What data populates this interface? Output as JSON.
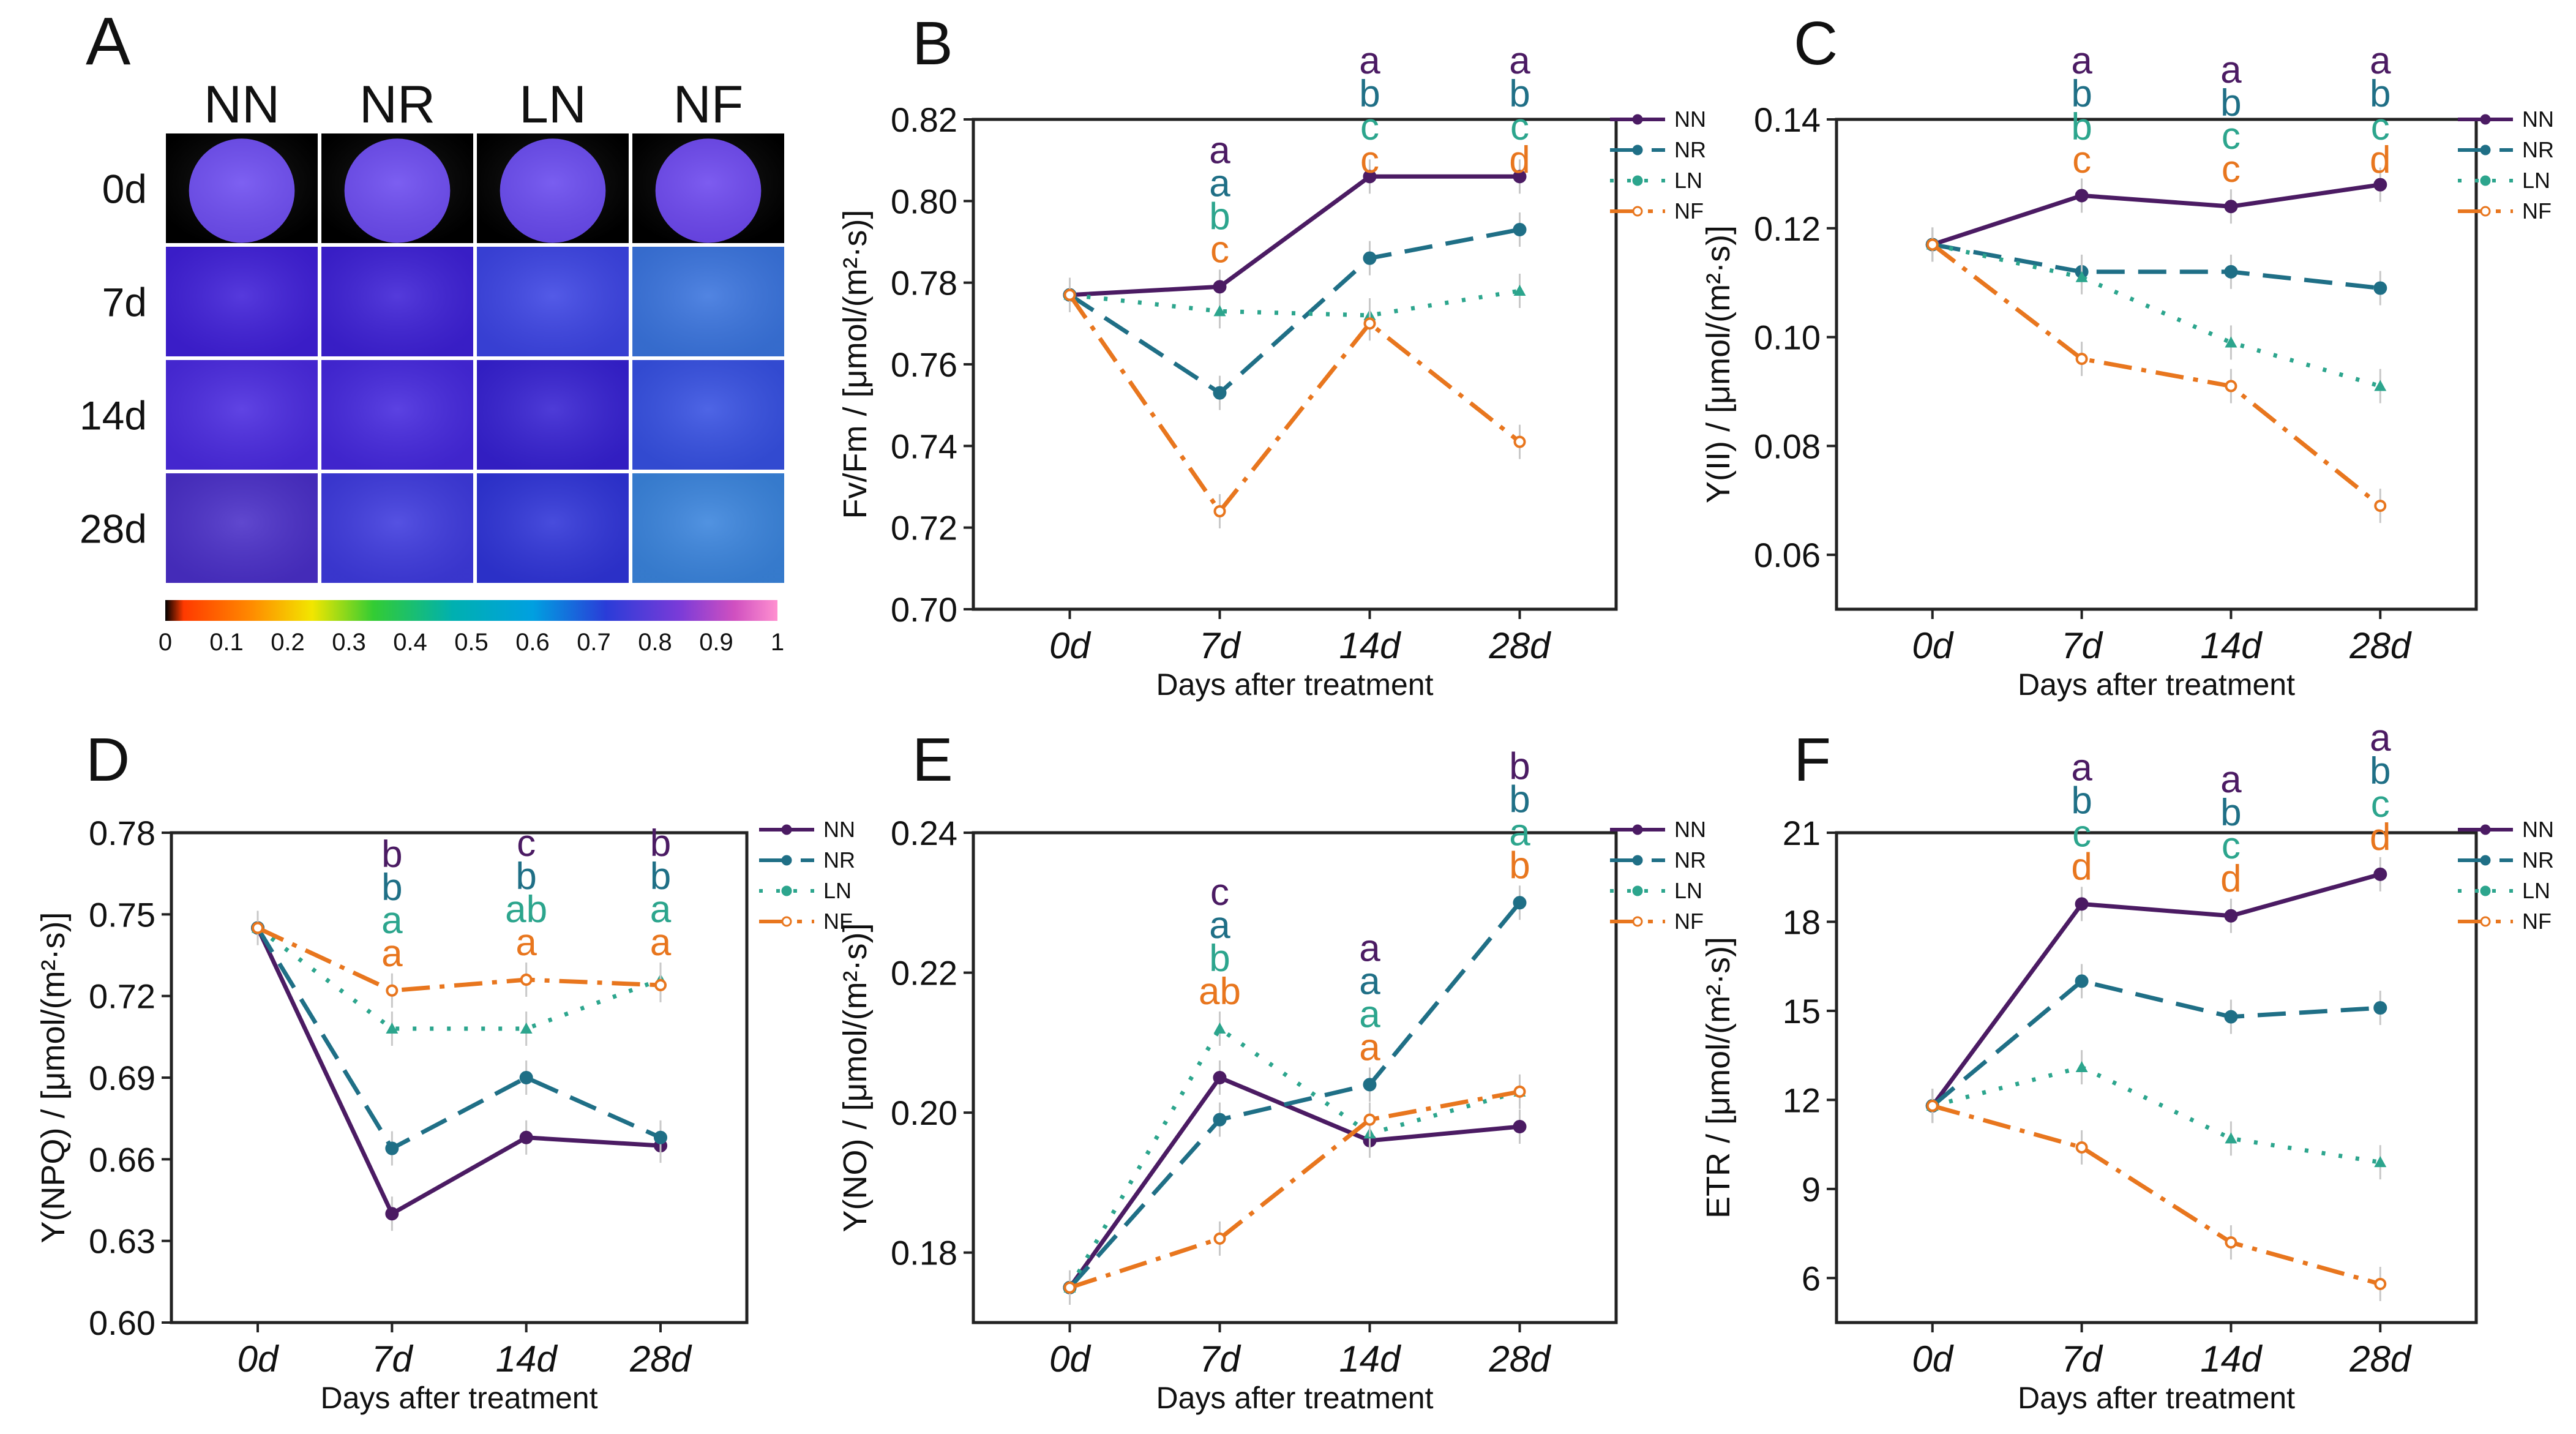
{
  "panel_a": {
    "letter": "A",
    "columns": [
      "NN",
      "NR",
      "LN",
      "NF"
    ],
    "rows": [
      "0d",
      "7d",
      "14d",
      "28d"
    ],
    "colorbar_ticks": [
      "0",
      "0.1",
      "0.2",
      "0.3",
      "0.4",
      "0.5",
      "0.6",
      "0.7",
      "0.8",
      "0.9",
      "1"
    ],
    "colors": {
      "0d": [
        "#6c4bf0",
        "#6a49ef",
        "#6748ee",
        "#6b46ee"
      ],
      "7d": [
        "#3f1fd8",
        "#3d20d6",
        "#3c44e4",
        "#3a74de"
      ],
      "14d": [
        "#4a2ae0",
        "#4528de",
        "#3621d2",
        "#3650e2"
      ],
      "28d": [
        "#4a2fc8",
        "#3e3ade",
        "#2f34d8",
        "#3a84dd"
      ]
    }
  },
  "series_colors": {
    "NN": "#4b1b63",
    "NR": "#1f6f86",
    "LN": "#2ca58d",
    "NF": "#e8761e"
  },
  "chart_data": [
    {
      "id": "B",
      "letter": "B",
      "type": "line",
      "categories": [
        "0d",
        "7d",
        "14d",
        "28d"
      ],
      "xlabel": "Days after treatment",
      "ylabel": "Fv/Fm / [μmol/(m²·s)]",
      "ylim": [
        0.7,
        0.82
      ],
      "yticks": [
        "0.70",
        "0.72",
        "0.74",
        "0.76",
        "0.78",
        "0.80",
        "0.82"
      ],
      "series": [
        {
          "name": "NN",
          "values": [
            0.777,
            0.779,
            0.806,
            0.806
          ]
        },
        {
          "name": "NR",
          "values": [
            0.777,
            0.753,
            0.786,
            0.793
          ]
        },
        {
          "name": "LN",
          "values": [
            0.777,
            0.773,
            0.772,
            0.778
          ]
        },
        {
          "name": "NF",
          "values": [
            0.777,
            0.724,
            0.77,
            0.741
          ]
        }
      ],
      "letters": [
        [],
        [
          "a",
          "a",
          "b",
          "c"
        ],
        [
          "a",
          "b",
          "c",
          "c"
        ],
        [
          "a",
          "b",
          "c",
          "d"
        ]
      ]
    },
    {
      "id": "C",
      "letter": "C",
      "type": "line",
      "categories": [
        "0d",
        "7d",
        "14d",
        "28d"
      ],
      "xlabel": "Days after treatment",
      "ylabel": "Y(II) / [μmol/(m²·s)]",
      "ylim": [
        0.05,
        0.14
      ],
      "yticks": [
        "0.06",
        "0.08",
        "0.10",
        "0.12",
        "0.14"
      ],
      "series": [
        {
          "name": "NN",
          "values": [
            0.117,
            0.126,
            0.124,
            0.128
          ]
        },
        {
          "name": "NR",
          "values": [
            0.117,
            0.112,
            0.112,
            0.109
          ]
        },
        {
          "name": "LN",
          "values": [
            0.117,
            0.111,
            0.099,
            0.091
          ]
        },
        {
          "name": "NF",
          "values": [
            0.117,
            0.096,
            0.091,
            0.069
          ]
        }
      ],
      "letters": [
        [],
        [
          "a",
          "b",
          "b",
          "c"
        ],
        [
          "a",
          "b",
          "c",
          "c"
        ],
        [
          "a",
          "b",
          "c",
          "d"
        ]
      ]
    },
    {
      "id": "D",
      "letter": "D",
      "type": "line",
      "categories": [
        "0d",
        "7d",
        "14d",
        "28d"
      ],
      "xlabel": "Days after treatment",
      "ylabel": "Y(NPQ) / [μmol/(m²·s)]",
      "ylim": [
        0.6,
        0.78
      ],
      "yticks": [
        "0.60",
        "0.63",
        "0.66",
        "0.69",
        "0.72",
        "0.75",
        "0.78"
      ],
      "series": [
        {
          "name": "NN",
          "values": [
            0.745,
            0.64,
            0.668,
            0.665
          ]
        },
        {
          "name": "NR",
          "values": [
            0.745,
            0.664,
            0.69,
            0.668
          ]
        },
        {
          "name": "LN",
          "values": [
            0.745,
            0.708,
            0.708,
            0.726
          ]
        },
        {
          "name": "NF",
          "values": [
            0.745,
            0.722,
            0.726,
            0.724
          ]
        }
      ],
      "letters": [
        [],
        [
          "b",
          "b",
          "a",
          "a"
        ],
        [
          "c",
          "b",
          "ab",
          "a"
        ],
        [
          "b",
          "b",
          "a",
          "a"
        ]
      ]
    },
    {
      "id": "E",
      "letter": "E",
      "type": "line",
      "categories": [
        "0d",
        "7d",
        "14d",
        "28d"
      ],
      "xlabel": "Days after treatment",
      "ylabel": "Y(NO) / [μmol/(m²·s)]",
      "ylim": [
        0.17,
        0.24
      ],
      "yticks": [
        "0.18",
        "0.20",
        "0.22",
        "0.24"
      ],
      "series": [
        {
          "name": "NN",
          "values": [
            0.175,
            0.205,
            0.196,
            0.198
          ]
        },
        {
          "name": "NR",
          "values": [
            0.175,
            0.199,
            0.204,
            0.23
          ]
        },
        {
          "name": "LN",
          "values": [
            0.175,
            0.212,
            0.197,
            0.203
          ]
        },
        {
          "name": "NF",
          "values": [
            0.175,
            0.182,
            0.199,
            0.203
          ]
        }
      ],
      "letters": [
        [],
        [
          "c",
          "a",
          "b",
          "ab"
        ],
        [
          "a",
          "a",
          "a",
          "a"
        ],
        [
          "b",
          "b",
          "a",
          "b"
        ]
      ]
    },
    {
      "id": "F",
      "letter": "F",
      "type": "line",
      "categories": [
        "0d",
        "7d",
        "14d",
        "28d"
      ],
      "xlabel": "Days after treatment",
      "ylabel": "ETR / [μmol/(m²·s)]",
      "ylim": [
        4.5,
        21
      ],
      "yticks": [
        "6",
        "9",
        "12",
        "15",
        "18",
        "21"
      ],
      "series": [
        {
          "name": "NN",
          "values": [
            11.8,
            18.6,
            18.2,
            19.6
          ]
        },
        {
          "name": "NR",
          "values": [
            11.8,
            16.0,
            14.8,
            15.1
          ]
        },
        {
          "name": "LN",
          "values": [
            11.8,
            13.1,
            10.7,
            9.9
          ]
        },
        {
          "name": "NF",
          "values": [
            11.8,
            10.4,
            7.2,
            5.8
          ]
        }
      ],
      "letters": [
        [],
        [
          "a",
          "b",
          "c",
          "d"
        ],
        [
          "a",
          "b",
          "c",
          "d"
        ],
        [
          "a",
          "b",
          "c",
          "d"
        ]
      ]
    }
  ]
}
